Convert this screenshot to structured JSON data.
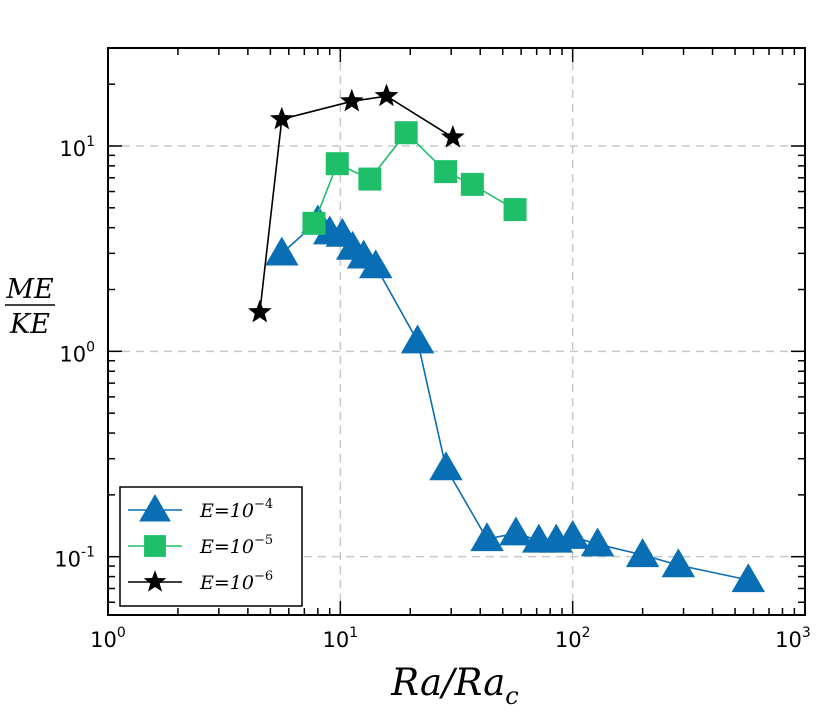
{
  "chart_data": {
    "type": "line",
    "x_scale": "log",
    "y_scale": "log",
    "xlim": [
      1,
      1000
    ],
    "ylim": [
      0.052,
      30
    ],
    "grid": true,
    "legend_position": "bottom-left",
    "x_ticks": [
      {
        "value": 1,
        "base": "10",
        "exp": "0"
      },
      {
        "value": 10,
        "base": "10",
        "exp": "1"
      },
      {
        "value": 100,
        "base": "10",
        "exp": "2"
      },
      {
        "value": 1000,
        "base": "10",
        "exp": "3"
      }
    ],
    "y_ticks": [
      {
        "value": 0.1,
        "base": "10",
        "exp": "-1"
      },
      {
        "value": 1,
        "base": "10",
        "exp": "0"
      },
      {
        "value": 10,
        "base": "10",
        "exp": "1"
      }
    ],
    "xlabel": {
      "main": "Ra/Ra",
      "sub": "c"
    },
    "ylabel": {
      "numerator": "ME",
      "denominator": "KE"
    },
    "series": [
      {
        "name": "E=10⁻⁴",
        "legend_base": "E=10",
        "legend_exp": "−4",
        "color": "#0a6eb4",
        "marker": "triangle",
        "x": [
          5.6,
          8.0,
          9.0,
          10.2,
          11.3,
          12.6,
          14.2,
          21.5,
          28.5,
          42.8,
          57.0,
          71.5,
          85.0,
          100.0,
          128.0,
          200.0,
          285.0,
          570.0
        ],
        "y": [
          3.0,
          4.3,
          3.8,
          3.7,
          3.2,
          2.9,
          2.6,
          1.12,
          0.27,
          0.122,
          0.13,
          0.12,
          0.12,
          0.125,
          0.115,
          0.102,
          0.091,
          0.077
        ]
      },
      {
        "name": "E=10⁻⁵",
        "legend_base": "E=10",
        "legend_exp": "−5",
        "color": "#1fbf6a",
        "marker": "square",
        "x": [
          7.7,
          9.7,
          13.4,
          19.2,
          28.4,
          37.0,
          56.5
        ],
        "y": [
          4.2,
          8.2,
          6.9,
          11.6,
          7.5,
          6.5,
          4.9
        ]
      },
      {
        "name": "E=10⁻⁶",
        "legend_base": "E=10",
        "legend_exp": "−6",
        "color": "#000000",
        "marker": "star",
        "x": [
          4.5,
          5.6,
          11.2,
          15.8,
          30.5
        ],
        "y": [
          1.55,
          13.5,
          16.5,
          17.5,
          11.0
        ]
      }
    ]
  }
}
